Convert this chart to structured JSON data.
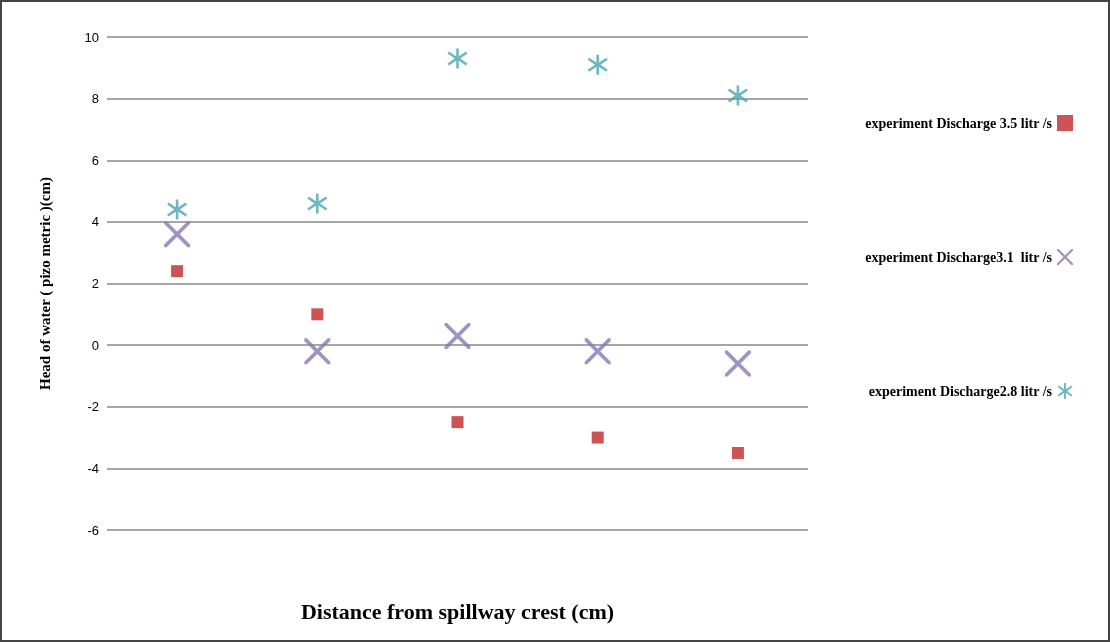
{
  "chart_data": {
    "type": "scatter",
    "xlabel": "Distance from spillway crest (cm)",
    "ylabel": "Head of water ( pizo metric )(cm)",
    "categories": [
      null,
      null,
      null,
      null,
      null
    ],
    "series": [
      {
        "name": "experiment Discharge 3.5 litr /s",
        "color": "#c0282a",
        "marker": "square",
        "values": [
          2.4,
          1.0,
          -2.5,
          -3.0,
          -3.5
        ]
      },
      {
        "name": "experiment Discharge3.1  litr /s",
        "color": "#8878b0",
        "marker": "cross",
        "values": [
          3.6,
          -0.2,
          0.3,
          -0.2,
          -0.6
        ]
      },
      {
        "name": "experiment Discharge2.8 litr /s",
        "color": "#4aa5b0",
        "marker": "star",
        "values": [
          4.4,
          4.6,
          9.3,
          9.1,
          8.1
        ]
      }
    ],
    "ylim": [
      -6,
      10
    ],
    "yticks": [
      -6,
      -4,
      -2,
      0,
      2,
      4,
      6,
      8,
      10
    ],
    "grid": "y",
    "legend": "right"
  }
}
